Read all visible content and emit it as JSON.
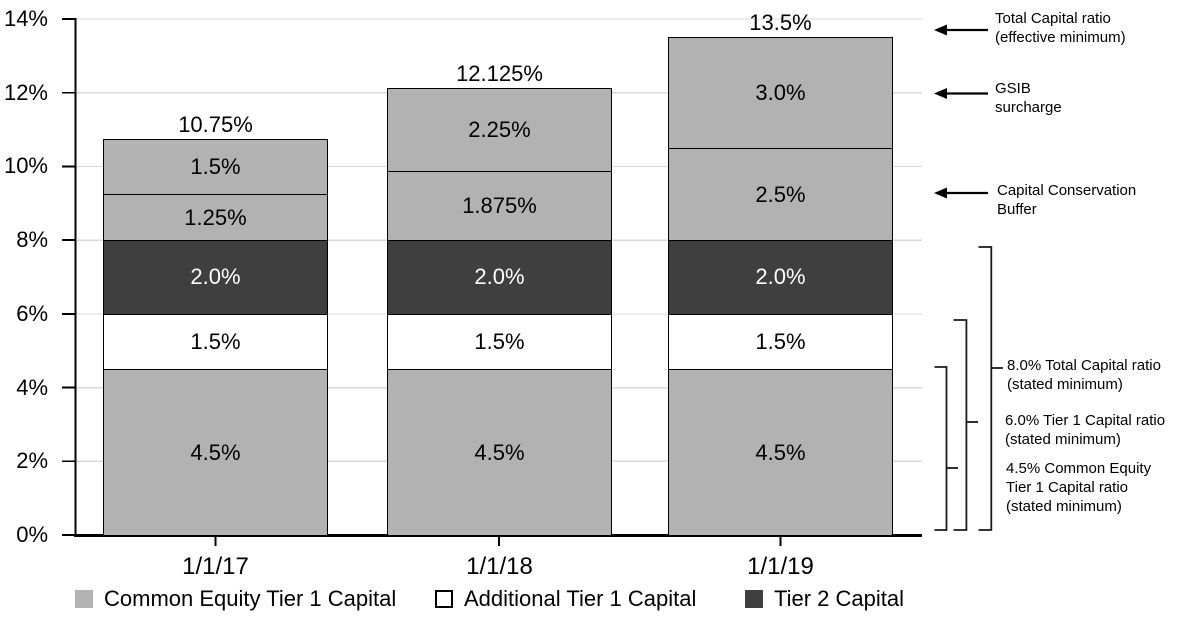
{
  "chart_data": {
    "type": "bar",
    "subtype": "stacked",
    "title": "",
    "categories": [
      "1/1/17",
      "1/1/18",
      "1/1/19"
    ],
    "series": [
      {
        "name": "Common Equity Tier 1 Capital (stated minimum)",
        "key": "cet1-minimum",
        "color": "#b2b2b2",
        "text_color": "#000000",
        "values": [
          4.5,
          4.5,
          4.5
        ]
      },
      {
        "name": "Additional Tier 1 Capital",
        "key": "additional-tier1",
        "color": "#ffffff",
        "text_color": "#000000",
        "values": [
          1.5,
          1.5,
          1.5
        ]
      },
      {
        "name": "Tier 2 Capital",
        "key": "tier2",
        "color": "#3f3f3f",
        "text_color": "#ffffff",
        "values": [
          2.0,
          2.0,
          2.0
        ]
      },
      {
        "name": "Capital Conservation Buffer",
        "key": "conservation-buffer",
        "color": "#b2b2b2",
        "text_color": "#000000",
        "values": [
          1.25,
          1.875,
          2.5
        ]
      },
      {
        "name": "GSIB surcharge",
        "key": "gsib-surcharge",
        "color": "#b2b2b2",
        "text_color": "#000000",
        "values": [
          1.5,
          2.25,
          3.0
        ]
      }
    ],
    "segment_labels": [
      [
        "4.5%",
        "1.5%",
        "2.0%",
        "1.25%",
        "1.5%"
      ],
      [
        "4.5%",
        "1.5%",
        "2.0%",
        "1.875%",
        "2.25%"
      ],
      [
        "4.5%",
        "1.5%",
        "2.0%",
        "2.5%",
        "3.0%"
      ]
    ],
    "totals": [
      "10.75%",
      "12.125%",
      "13.5%"
    ],
    "y_axis": {
      "ticks": [
        "0%",
        "2%",
        "4%",
        "6%",
        "8%",
        "10%",
        "12%",
        "14%"
      ],
      "min": 0,
      "max": 14,
      "grid": true
    },
    "legend_position": "bottom"
  },
  "annotations": {
    "arrow_labels": [
      {
        "text": "Total Capital ratio\n(effective minimum)",
        "points_at_pct": 13.5
      },
      {
        "text": "GSIB\nsurcharge",
        "points_at_pct": 12.0
      },
      {
        "text": "Capital Conservation\nBuffer",
        "points_at_pct": 9.25
      }
    ],
    "bracket_labels": [
      {
        "text": "8.0% Total Capital ratio\n(stated minimum)",
        "span_pct": [
          0,
          8.0
        ]
      },
      {
        "text": "6.0% Tier 1 Capital ratio\n(stated minimum)",
        "span_pct": [
          0,
          6.0
        ]
      },
      {
        "text": "4.5% Common Equity\nTier 1 Capital ratio\n(stated minimum)",
        "span_pct": [
          0,
          4.5
        ]
      }
    ]
  },
  "legend": {
    "items": [
      {
        "label": "Common Equity Tier 1 Capital",
        "swatch": "gray"
      },
      {
        "label": "Additional Tier 1 Capital",
        "swatch": "white"
      },
      {
        "label": "Tier 2 Capital",
        "swatch": "dark"
      }
    ]
  },
  "colors": {
    "bar_light_gray": "#b2b2b2",
    "bar_dark_gray": "#3f3f3f",
    "bar_white": "#ffffff",
    "gridline": "#d9d9d9",
    "axis": "#000000",
    "text": "#000000"
  }
}
